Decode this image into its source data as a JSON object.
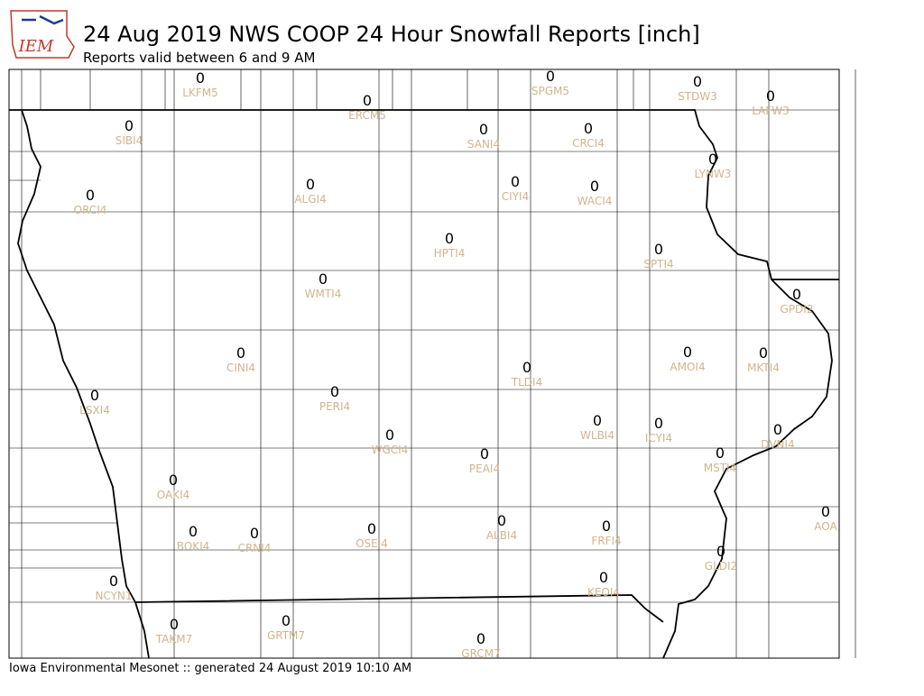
{
  "logo": "IEM",
  "title": "24 Aug 2019 NWS COOP 24 Hour Snowfall Reports [inch]",
  "subtitle": "Reports valid between 6 and 9 AM",
  "footer": "Iowa Environmental Mesonet :: generated 24 August 2019 10:10 AM",
  "stations": [
    {
      "value": 0,
      "id": "LKFM5"
    },
    {
      "value": 0,
      "id": "ERCM5"
    },
    {
      "value": 0,
      "id": "SPGM5"
    },
    {
      "value": 0,
      "id": "STDW3"
    },
    {
      "value": 0,
      "id": "LAFW3"
    },
    {
      "value": 0,
      "id": "SIBI4"
    },
    {
      "value": 0,
      "id": "SANI4"
    },
    {
      "value": 0,
      "id": "CRCI4"
    },
    {
      "value": 0,
      "id": "LYNW3"
    },
    {
      "value": 0,
      "id": "ORCI4"
    },
    {
      "value": 0,
      "id": "ALGI4"
    },
    {
      "value": 0,
      "id": "CIYI4"
    },
    {
      "value": 0,
      "id": "WACI4"
    },
    {
      "value": 0,
      "id": "HPTI4"
    },
    {
      "value": 0,
      "id": "SPTI4"
    },
    {
      "value": 0,
      "id": "WMTI4"
    },
    {
      "value": 0,
      "id": "GPDI2"
    },
    {
      "value": 0,
      "id": "CINI4"
    },
    {
      "value": 0,
      "id": "AMOI4"
    },
    {
      "value": 0,
      "id": "MKTI4"
    },
    {
      "value": 0,
      "id": "TLDI4"
    },
    {
      "value": 0,
      "id": "LSXI4"
    },
    {
      "value": 0,
      "id": "PERI4"
    },
    {
      "value": 0,
      "id": "WLBI4"
    },
    {
      "value": 0,
      "id": "ICYI4"
    },
    {
      "value": 0,
      "id": "DVNI4"
    },
    {
      "value": 0,
      "id": "WGCI4"
    },
    {
      "value": 0,
      "id": "PEAI4"
    },
    {
      "value": 0,
      "id": "MSTI4"
    },
    {
      "value": 0,
      "id": "OAKI4"
    },
    {
      "value": 0,
      "id": "AOA"
    },
    {
      "value": 0,
      "id": "BOKI4"
    },
    {
      "value": 0,
      "id": "CRNI4"
    },
    {
      "value": 0,
      "id": "OSEI4"
    },
    {
      "value": 0,
      "id": "ALBI4"
    },
    {
      "value": 0,
      "id": "FRFI4"
    },
    {
      "value": 0,
      "id": "GLDI2"
    },
    {
      "value": 0,
      "id": "NCYN1"
    },
    {
      "value": 0,
      "id": "KEOI4"
    },
    {
      "value": 0,
      "id": "TAKM7"
    },
    {
      "value": 0,
      "id": "GRTM7"
    },
    {
      "value": 0,
      "id": "GRCM7"
    }
  ]
}
